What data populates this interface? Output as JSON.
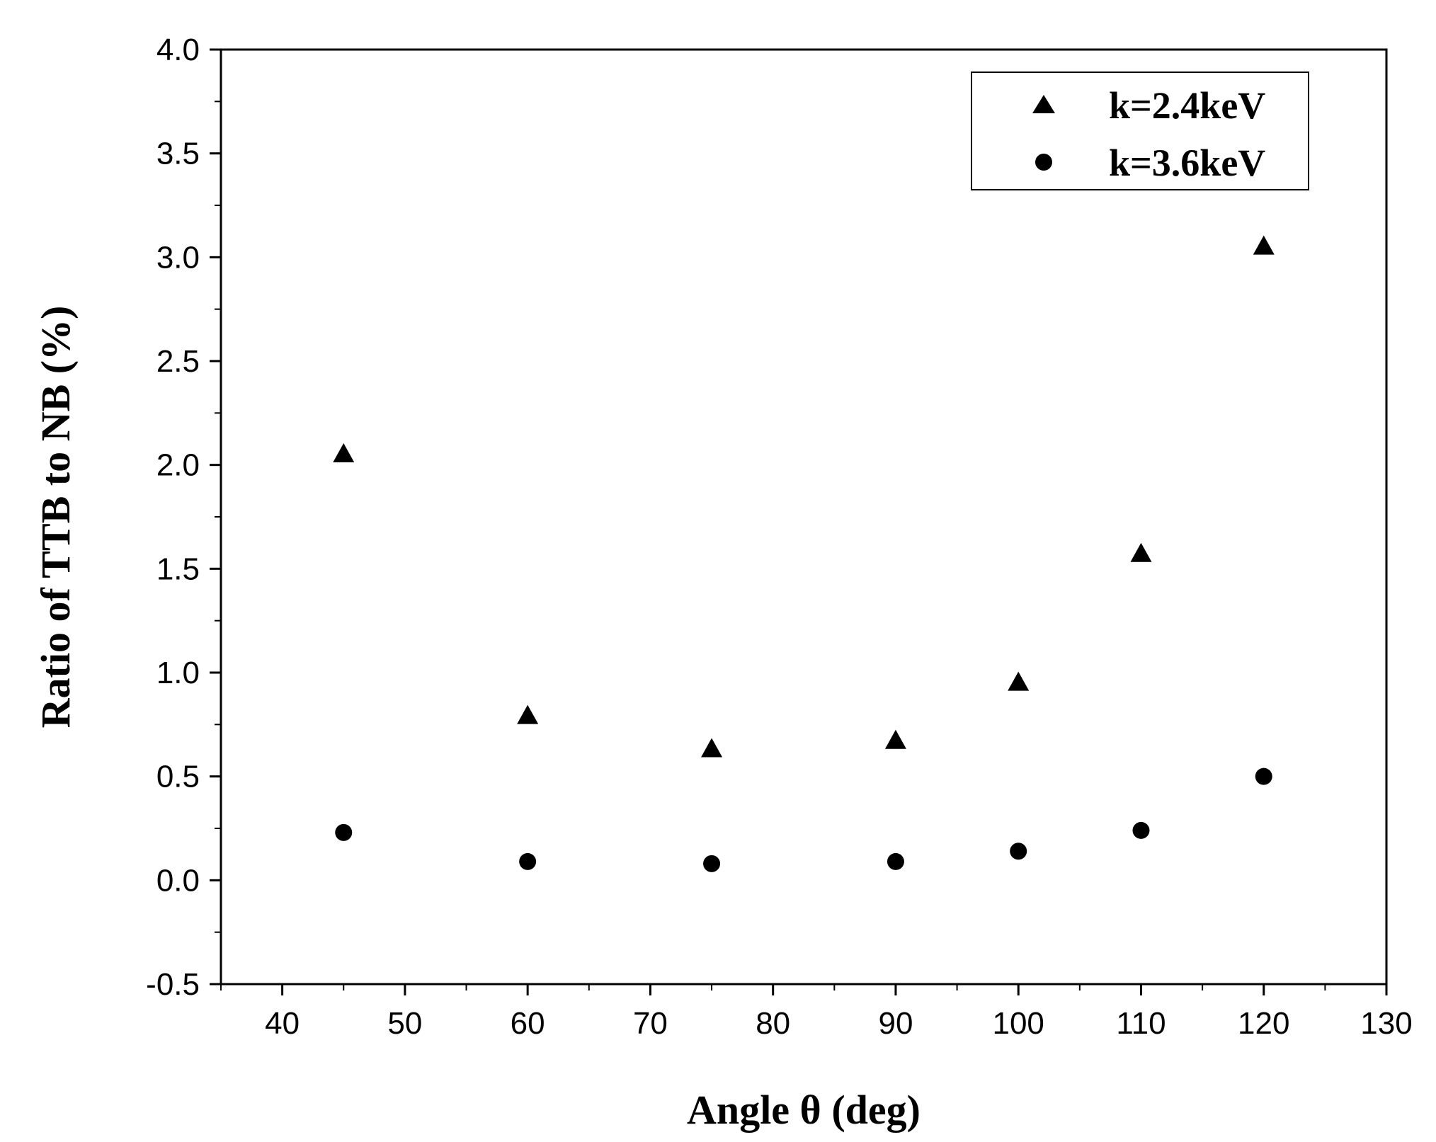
{
  "chart_data": {
    "type": "scatter",
    "xlabel": "Angle θ (deg)",
    "ylabel": "Ratio of TTB to NB (%)",
    "xlim": [
      35,
      130
    ],
    "ylim": [
      -0.5,
      4.0
    ],
    "xticks": [
      40,
      50,
      60,
      70,
      80,
      90,
      100,
      110,
      120,
      130
    ],
    "yticks": [
      -0.5,
      0.0,
      0.5,
      1.0,
      1.5,
      2.0,
      2.5,
      3.0,
      3.5,
      4.0
    ],
    "x_tick_labels": [
      "40",
      "50",
      "60",
      "70",
      "80",
      "90",
      "100",
      "110",
      "120",
      "130"
    ],
    "y_tick_labels": [
      "-0.5",
      "0.0",
      "0.5",
      "1.0",
      "1.5",
      "2.0",
      "2.5",
      "3.0",
      "3.5",
      "4.0"
    ],
    "grid": false,
    "legend_position": "top-right",
    "series": [
      {
        "name": "k=2.4keV",
        "marker": "triangle",
        "color": "#000000",
        "x": [
          45,
          60,
          75,
          90,
          100,
          110,
          120
        ],
        "y": [
          2.05,
          0.79,
          0.63,
          0.67,
          0.95,
          1.57,
          3.05
        ]
      },
      {
        "name": "k=3.6keV",
        "marker": "circle",
        "color": "#000000",
        "x": [
          45,
          60,
          75,
          90,
          100,
          110,
          120
        ],
        "y": [
          0.23,
          0.09,
          0.08,
          0.09,
          0.14,
          0.24,
          0.5
        ]
      }
    ]
  }
}
